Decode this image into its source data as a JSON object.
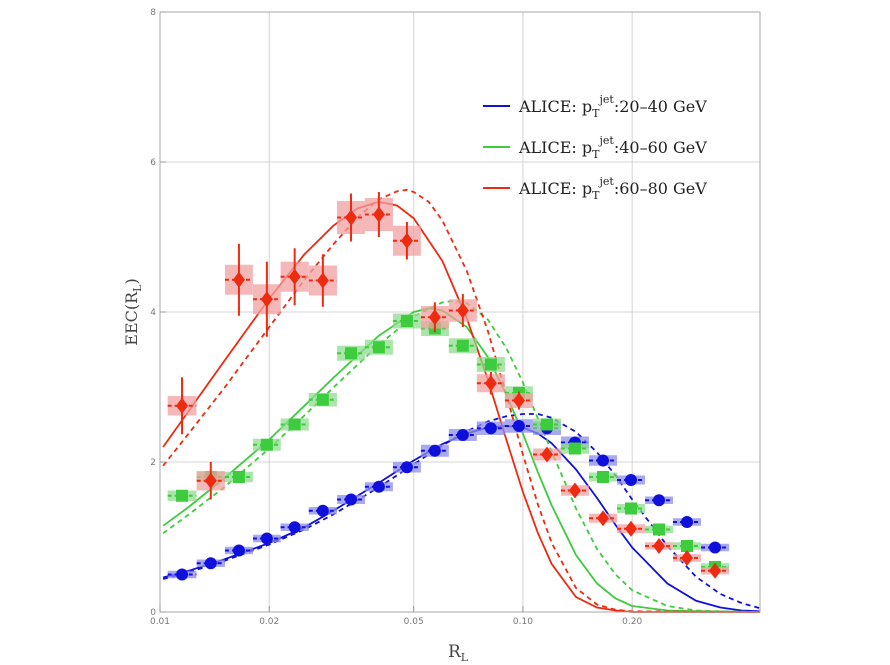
{
  "chart_data": {
    "type": "scatter",
    "title": "",
    "xlabel": {
      "main": "R",
      "sub": "L"
    },
    "ylabel": {
      "main": "EEC(R",
      "sub": "L",
      "close": ")"
    },
    "xscale": "log",
    "xlim": [
      0.01,
      0.45
    ],
    "ylim": [
      0,
      8
    ],
    "grid": true,
    "legend_position": "top-right",
    "xticks": [
      {
        "value": 0.01,
        "label": "0.01"
      },
      {
        "value": 0.02,
        "label": "0.02"
      },
      {
        "value": 0.05,
        "label": "0.05"
      },
      {
        "value": 0.1,
        "label": "0.10"
      },
      {
        "value": 0.2,
        "label": "0.20"
      }
    ],
    "yticks": [
      {
        "value": 0,
        "label": "0"
      },
      {
        "value": 2,
        "label": "2"
      },
      {
        "value": 4,
        "label": "4"
      },
      {
        "value": 6,
        "label": "6"
      },
      {
        "value": 8,
        "label": "8"
      }
    ],
    "series": [
      {
        "name": "ALICE: pT jet:20–40 GeV",
        "legend": {
          "prefix": "ALICE: p",
          "sub": "T",
          "sup": "jet",
          "suffix": ":20–40 GeV"
        },
        "color": "#1010dd",
        "band_color": "#8c8cee",
        "marker": "circle",
        "x": [
          0.0115,
          0.0138,
          0.0165,
          0.0197,
          0.0235,
          0.0281,
          0.0336,
          0.0401,
          0.0479,
          0.0572,
          0.0683,
          0.0816,
          0.0975,
          0.1165,
          0.1391,
          0.1662,
          0.1985,
          0.2371,
          0.2832,
          0.3383
        ],
        "values": [
          0.5,
          0.65,
          0.82,
          0.98,
          1.13,
          1.35,
          1.5,
          1.67,
          1.93,
          2.15,
          2.36,
          2.45,
          2.48,
          2.45,
          2.26,
          2.02,
          1.76,
          1.49,
          1.2,
          0.86
        ],
        "errors": [
          0.02,
          0.02,
          0.02,
          0.02,
          0.02,
          0.02,
          0.02,
          0.02,
          0.02,
          0.02,
          0.02,
          0.02,
          0.02,
          0.02,
          0.02,
          0.02,
          0.02,
          0.02,
          0.02,
          0.02
        ],
        "syst": [
          0.05,
          0.05,
          0.05,
          0.05,
          0.05,
          0.05,
          0.06,
          0.06,
          0.07,
          0.08,
          0.08,
          0.09,
          0.09,
          0.09,
          0.08,
          0.07,
          0.06,
          0.05,
          0.05,
          0.05
        ],
        "curve_solid": [
          [
            0.0102,
            0.46
          ],
          [
            0.012,
            0.55
          ],
          [
            0.015,
            0.7
          ],
          [
            0.02,
            0.92
          ],
          [
            0.025,
            1.13
          ],
          [
            0.03,
            1.35
          ],
          [
            0.04,
            1.72
          ],
          [
            0.05,
            2.02
          ],
          [
            0.06,
            2.24
          ],
          [
            0.07,
            2.38
          ],
          [
            0.08,
            2.46
          ],
          [
            0.09,
            2.48
          ],
          [
            0.1,
            2.46
          ],
          [
            0.11,
            2.38
          ],
          [
            0.12,
            2.25
          ],
          [
            0.14,
            1.9
          ],
          [
            0.16,
            1.52
          ],
          [
            0.18,
            1.16
          ],
          [
            0.2,
            0.86
          ],
          [
            0.25,
            0.38
          ],
          [
            0.3,
            0.15
          ],
          [
            0.35,
            0.06
          ],
          [
            0.4,
            0.02
          ],
          [
            0.45,
            0.01
          ]
        ],
        "curve_dashed": [
          [
            0.0102,
            0.44
          ],
          [
            0.012,
            0.53
          ],
          [
            0.015,
            0.68
          ],
          [
            0.02,
            0.9
          ],
          [
            0.025,
            1.1
          ],
          [
            0.03,
            1.3
          ],
          [
            0.04,
            1.66
          ],
          [
            0.05,
            1.97
          ],
          [
            0.06,
            2.22
          ],
          [
            0.07,
            2.41
          ],
          [
            0.08,
            2.54
          ],
          [
            0.09,
            2.61
          ],
          [
            0.1,
            2.64
          ],
          [
            0.11,
            2.64
          ],
          [
            0.12,
            2.59
          ],
          [
            0.14,
            2.4
          ],
          [
            0.16,
            2.13
          ],
          [
            0.18,
            1.82
          ],
          [
            0.2,
            1.5
          ],
          [
            0.25,
            0.88
          ],
          [
            0.3,
            0.47
          ],
          [
            0.35,
            0.24
          ],
          [
            0.4,
            0.12
          ],
          [
            0.45,
            0.05
          ]
        ]
      },
      {
        "name": "ALICE: pT jet:40–60 GeV",
        "legend": {
          "prefix": "ALICE: p",
          "sub": "T",
          "sup": "jet",
          "suffix": ":40–60 GeV"
        },
        "color": "#3dcc3d",
        "band_color": "#8fdc8f",
        "marker": "square",
        "x": [
          0.0115,
          0.0138,
          0.0165,
          0.0197,
          0.0235,
          0.0281,
          0.0336,
          0.0401,
          0.0479,
          0.0572,
          0.0683,
          0.0816,
          0.0975,
          0.1165,
          0.1391,
          0.1662,
          0.1985,
          0.2371,
          0.2832,
          0.3383
        ],
        "values": [
          1.55,
          1.8,
          1.8,
          2.23,
          2.5,
          2.83,
          3.45,
          3.53,
          3.88,
          3.78,
          3.55,
          3.3,
          2.92,
          2.5,
          2.18,
          1.8,
          1.38,
          1.1,
          0.88,
          0.6
        ],
        "errors": [
          0.03,
          0.03,
          0.03,
          0.03,
          0.03,
          0.03,
          0.03,
          0.03,
          0.03,
          0.03,
          0.03,
          0.03,
          0.03,
          0.03,
          0.03,
          0.03,
          0.03,
          0.03,
          0.03,
          0.03
        ],
        "syst": [
          0.07,
          0.07,
          0.07,
          0.08,
          0.08,
          0.09,
          0.1,
          0.1,
          0.1,
          0.1,
          0.1,
          0.1,
          0.09,
          0.08,
          0.07,
          0.06,
          0.06,
          0.05,
          0.05,
          0.05
        ],
        "curve_solid": [
          [
            0.0102,
            1.15
          ],
          [
            0.012,
            1.4
          ],
          [
            0.015,
            1.78
          ],
          [
            0.02,
            2.3
          ],
          [
            0.025,
            2.75
          ],
          [
            0.03,
            3.12
          ],
          [
            0.04,
            3.68
          ],
          [
            0.05,
            4.0
          ],
          [
            0.055,
            4.05
          ],
          [
            0.06,
            4.02
          ],
          [
            0.07,
            3.8
          ],
          [
            0.08,
            3.4
          ],
          [
            0.09,
            2.9
          ],
          [
            0.1,
            2.38
          ],
          [
            0.11,
            1.86
          ],
          [
            0.12,
            1.42
          ],
          [
            0.14,
            0.76
          ],
          [
            0.16,
            0.38
          ],
          [
            0.18,
            0.18
          ],
          [
            0.2,
            0.08
          ],
          [
            0.25,
            0.02
          ],
          [
            0.3,
            0.01
          ],
          [
            0.45,
            0.0
          ]
        ],
        "curve_dashed": [
          [
            0.0102,
            1.05
          ],
          [
            0.012,
            1.3
          ],
          [
            0.015,
            1.66
          ],
          [
            0.02,
            2.18
          ],
          [
            0.025,
            2.62
          ],
          [
            0.03,
            2.99
          ],
          [
            0.04,
            3.56
          ],
          [
            0.05,
            3.94
          ],
          [
            0.06,
            4.13
          ],
          [
            0.065,
            4.15
          ],
          [
            0.07,
            4.12
          ],
          [
            0.08,
            3.9
          ],
          [
            0.09,
            3.52
          ],
          [
            0.1,
            3.06
          ],
          [
            0.12,
            2.14
          ],
          [
            0.14,
            1.38
          ],
          [
            0.16,
            0.84
          ],
          [
            0.18,
            0.5
          ],
          [
            0.2,
            0.29
          ],
          [
            0.25,
            0.08
          ],
          [
            0.3,
            0.02
          ],
          [
            0.35,
            0.01
          ],
          [
            0.45,
            0.0
          ]
        ]
      },
      {
        "name": "ALICE: pT jet:60–80 GeV",
        "legend": {
          "prefix": "ALICE: p",
          "sub": "T",
          "sup": "jet",
          "suffix": ":60–80 GeV"
        },
        "color": "#ee2a10",
        "band_color": "#f2a0a0",
        "marker": "diamond",
        "x": [
          0.0115,
          0.0138,
          0.0165,
          0.0197,
          0.0235,
          0.0281,
          0.0336,
          0.0401,
          0.0479,
          0.0572,
          0.0683,
          0.0816,
          0.0975,
          0.1165,
          0.1391,
          0.1662,
          0.1985,
          0.2371,
          0.2832,
          0.3383
        ],
        "values": [
          2.75,
          1.75,
          4.43,
          4.17,
          4.47,
          4.42,
          5.26,
          5.3,
          4.95,
          3.93,
          4.02,
          3.05,
          2.82,
          2.1,
          1.62,
          1.25,
          1.11,
          0.88,
          0.72,
          0.55
        ],
        "errors": [
          0.38,
          0.25,
          0.48,
          0.5,
          0.38,
          0.35,
          0.32,
          0.3,
          0.25,
          0.2,
          0.22,
          0.15,
          0.12,
          0.08,
          0.06,
          0.05,
          0.05,
          0.04,
          0.04,
          0.04
        ],
        "syst": [
          0.13,
          0.13,
          0.2,
          0.2,
          0.2,
          0.2,
          0.22,
          0.22,
          0.2,
          0.15,
          0.15,
          0.12,
          0.1,
          0.08,
          0.07,
          0.06,
          0.06,
          0.05,
          0.05,
          0.05
        ],
        "curve_solid": [
          [
            0.0102,
            2.2
          ],
          [
            0.012,
            2.68
          ],
          [
            0.015,
            3.34
          ],
          [
            0.02,
            4.18
          ],
          [
            0.025,
            4.77
          ],
          [
            0.03,
            5.15
          ],
          [
            0.035,
            5.38
          ],
          [
            0.04,
            5.47
          ],
          [
            0.045,
            5.42
          ],
          [
            0.05,
            5.25
          ],
          [
            0.06,
            4.68
          ],
          [
            0.07,
            3.92
          ],
          [
            0.08,
            3.1
          ],
          [
            0.09,
            2.3
          ],
          [
            0.1,
            1.6
          ],
          [
            0.11,
            1.05
          ],
          [
            0.12,
            0.64
          ],
          [
            0.14,
            0.2
          ],
          [
            0.16,
            0.06
          ],
          [
            0.18,
            0.02
          ],
          [
            0.2,
            0.0
          ],
          [
            0.45,
            0.0
          ]
        ],
        "curve_dashed": [
          [
            0.0102,
            1.95
          ],
          [
            0.012,
            2.38
          ],
          [
            0.015,
            2.98
          ],
          [
            0.02,
            3.8
          ],
          [
            0.025,
            4.43
          ],
          [
            0.03,
            4.9
          ],
          [
            0.035,
            5.26
          ],
          [
            0.04,
            5.5
          ],
          [
            0.045,
            5.61
          ],
          [
            0.048,
            5.63
          ],
          [
            0.05,
            5.6
          ],
          [
            0.055,
            5.47
          ],
          [
            0.06,
            5.22
          ],
          [
            0.07,
            4.55
          ],
          [
            0.08,
            3.75
          ],
          [
            0.09,
            2.9
          ],
          [
            0.1,
            2.1
          ],
          [
            0.11,
            1.43
          ],
          [
            0.12,
            0.92
          ],
          [
            0.14,
            0.32
          ],
          [
            0.16,
            0.1
          ],
          [
            0.18,
            0.03
          ],
          [
            0.2,
            0.01
          ],
          [
            0.45,
            0.0
          ]
        ]
      }
    ]
  }
}
